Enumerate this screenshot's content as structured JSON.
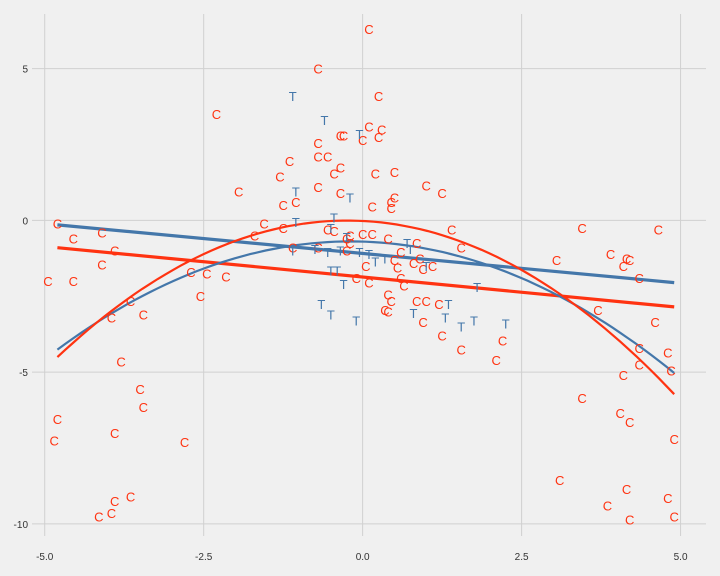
{
  "chart_data": {
    "type": "scatter",
    "title": "",
    "xlabel": "",
    "ylabel": "",
    "xlim": [
      -5.2,
      5.4
    ],
    "ylim": [
      -10.4,
      6.8
    ],
    "grid": true,
    "x_ticks": [
      -5.0,
      -2.5,
      0.0,
      2.5,
      5.0
    ],
    "x_tick_labels": [
      "-5.0",
      "-2.5",
      "0.0",
      "2.5",
      "5.0"
    ],
    "y_ticks": [
      5,
      0,
      -5,
      -10
    ],
    "y_tick_labels": [
      "5",
      "0",
      "-5",
      "-10"
    ],
    "colors": {
      "C": "#ff3311",
      "T": "#4477aa",
      "background": "#f0f0f0",
      "grid": "#d0d0d0"
    },
    "series": [
      {
        "name": "C",
        "marker_text": "C",
        "points": [
          [
            0.1,
            6.3
          ],
          [
            -0.7,
            5.0
          ],
          [
            0.25,
            4.1
          ],
          [
            -2.3,
            3.5
          ],
          [
            0.1,
            3.1
          ],
          [
            0.3,
            3.0
          ],
          [
            -0.3,
            2.8
          ],
          [
            -0.35,
            2.8
          ],
          [
            0.25,
            2.75
          ],
          [
            0.0,
            2.65
          ],
          [
            -0.7,
            2.55
          ],
          [
            -0.7,
            2.1
          ],
          [
            -0.55,
            2.1
          ],
          [
            -1.15,
            1.95
          ],
          [
            -0.35,
            1.75
          ],
          [
            -0.45,
            1.55
          ],
          [
            0.5,
            1.6
          ],
          [
            0.2,
            1.55
          ],
          [
            -1.3,
            1.45
          ],
          [
            1.0,
            1.15
          ],
          [
            -0.7,
            1.1
          ],
          [
            -1.95,
            0.95
          ],
          [
            1.25,
            0.9
          ],
          [
            -0.35,
            0.9
          ],
          [
            0.5,
            0.75
          ],
          [
            0.45,
            0.6
          ],
          [
            -1.05,
            0.6
          ],
          [
            -1.25,
            0.5
          ],
          [
            0.15,
            0.45
          ],
          [
            0.45,
            0.4
          ],
          [
            -1.55,
            -0.1
          ],
          [
            -1.25,
            -0.25
          ],
          [
            -0.55,
            -0.3
          ],
          [
            -0.45,
            -0.35
          ],
          [
            0.15,
            -0.45
          ],
          [
            0.0,
            -0.45
          ],
          [
            -0.2,
            -0.5
          ],
          [
            -0.25,
            -0.6
          ],
          [
            1.4,
            -0.3
          ],
          [
            -1.7,
            -0.5
          ],
          [
            0.4,
            -0.6
          ],
          [
            0.85,
            -0.75
          ],
          [
            -0.2,
            -0.75
          ],
          [
            -0.7,
            -0.9
          ],
          [
            -1.1,
            -0.9
          ],
          [
            1.55,
            -0.9
          ],
          [
            -0.25,
            -1.0
          ],
          [
            0.6,
            -1.05
          ],
          [
            0.9,
            -1.25
          ],
          [
            0.5,
            -1.3
          ],
          [
            0.8,
            -1.4
          ],
          [
            0.05,
            -1.5
          ],
          [
            1.1,
            -1.5
          ],
          [
            0.55,
            -1.55
          ],
          [
            0.95,
            -1.6
          ],
          [
            -2.7,
            -1.7
          ],
          [
            -2.45,
            -1.75
          ],
          [
            -2.15,
            -1.85
          ],
          [
            -0.1,
            -1.9
          ],
          [
            0.6,
            -1.9
          ],
          [
            0.1,
            -2.05
          ],
          [
            0.65,
            -2.15
          ],
          [
            -2.55,
            -2.5
          ],
          [
            0.4,
            -2.45
          ],
          [
            0.85,
            -2.65
          ],
          [
            0.45,
            -2.65
          ],
          [
            1.0,
            -2.65
          ],
          [
            1.2,
            -2.75
          ],
          [
            0.35,
            -2.95
          ],
          [
            0.4,
            -3.0
          ],
          [
            0.95,
            -3.35
          ],
          [
            1.25,
            -3.8
          ],
          [
            1.55,
            -4.25
          ],
          [
            2.2,
            -3.95
          ],
          [
            2.1,
            -4.6
          ],
          [
            -3.65,
            -2.65
          ],
          [
            -3.45,
            -3.1
          ],
          [
            -3.95,
            -3.2
          ],
          [
            -4.95,
            -2.0
          ],
          [
            -4.55,
            -2.0
          ],
          [
            -4.1,
            -1.45
          ],
          [
            -3.9,
            -1.0
          ],
          [
            -4.55,
            -0.6
          ],
          [
            -4.8,
            -0.1
          ],
          [
            -4.1,
            -0.4
          ],
          [
            3.45,
            -0.25
          ],
          [
            4.65,
            -0.3
          ],
          [
            3.05,
            -1.3
          ],
          [
            3.9,
            -1.1
          ],
          [
            4.15,
            -1.25
          ],
          [
            4.2,
            -1.3
          ],
          [
            4.1,
            -1.5
          ],
          [
            4.35,
            -1.9
          ],
          [
            3.7,
            -2.95
          ],
          [
            4.6,
            -3.35
          ],
          [
            4.35,
            -4.2
          ],
          [
            4.8,
            -4.35
          ],
          [
            4.35,
            -4.75
          ],
          [
            4.1,
            -5.1
          ],
          [
            4.85,
            -4.95
          ],
          [
            -3.8,
            -4.65
          ],
          [
            -3.5,
            -5.55
          ],
          [
            -3.45,
            -6.15
          ],
          [
            -4.8,
            -6.55
          ],
          [
            -4.85,
            -7.25
          ],
          [
            -3.9,
            -7.0
          ],
          [
            -2.8,
            -7.3
          ],
          [
            3.45,
            -5.85
          ],
          [
            4.05,
            -6.35
          ],
          [
            4.2,
            -6.65
          ],
          [
            4.9,
            -7.2
          ],
          [
            3.1,
            -8.55
          ],
          [
            4.15,
            -8.85
          ],
          [
            3.85,
            -9.4
          ],
          [
            4.8,
            -9.15
          ],
          [
            4.9,
            -9.75
          ],
          [
            4.2,
            -9.85
          ],
          [
            -3.65,
            -9.1
          ],
          [
            -3.9,
            -9.25
          ],
          [
            -3.95,
            -9.65
          ],
          [
            -4.15,
            -9.75
          ]
        ]
      },
      {
        "name": "T",
        "marker_text": "T",
        "points": [
          [
            -1.1,
            4.1
          ],
          [
            -0.6,
            3.3
          ],
          [
            -0.05,
            2.85
          ],
          [
            -1.05,
            0.95
          ],
          [
            -0.2,
            0.75
          ],
          [
            -0.45,
            0.1
          ],
          [
            -1.05,
            -0.05
          ],
          [
            -0.5,
            -0.25
          ],
          [
            -0.25,
            -0.55
          ],
          [
            -0.75,
            -0.95
          ],
          [
            -1.1,
            -1.0
          ],
          [
            -0.35,
            -1.0
          ],
          [
            -0.55,
            -1.05
          ],
          [
            -0.05,
            -1.05
          ],
          [
            0.1,
            -1.1
          ],
          [
            0.35,
            -1.25
          ],
          [
            0.2,
            -1.35
          ],
          [
            0.7,
            -0.75
          ],
          [
            0.75,
            -0.95
          ],
          [
            1.0,
            -1.5
          ],
          [
            -0.5,
            -1.65
          ],
          [
            -0.4,
            -1.65
          ],
          [
            -0.3,
            -2.1
          ],
          [
            1.8,
            -2.2
          ],
          [
            -0.65,
            -2.75
          ],
          [
            -0.5,
            -3.1
          ],
          [
            -0.1,
            -3.3
          ],
          [
            0.8,
            -3.05
          ],
          [
            1.35,
            -2.75
          ],
          [
            1.3,
            -3.2
          ],
          [
            1.55,
            -3.5
          ],
          [
            1.75,
            -3.3
          ],
          [
            2.25,
            -3.4
          ]
        ]
      }
    ],
    "lines": [
      {
        "name": "",
        "color": "#4477aa",
        "kind": "linear",
        "x": [
          -4.8,
          4.9
        ],
        "y": [
          -0.15,
          -2.05
        ]
      },
      {
        "name": "",
        "color": "#ff3311",
        "kind": "linear",
        "x": [
          -4.8,
          4.9
        ],
        "y": [
          -0.9,
          -2.85
        ]
      },
      {
        "name": "",
        "color": "#4477aa",
        "kind": "quadratic",
        "x_range": [
          -4.8,
          4.9
        ],
        "coef": [
          -0.1675,
          -0.063,
          -0.7
        ]
      },
      {
        "name": "",
        "color": "#ff3311",
        "kind": "quadratic",
        "x_range": [
          -4.8,
          4.9
        ],
        "coef": [
          -0.2165,
          -0.1045,
          -0.019
        ]
      }
    ]
  }
}
